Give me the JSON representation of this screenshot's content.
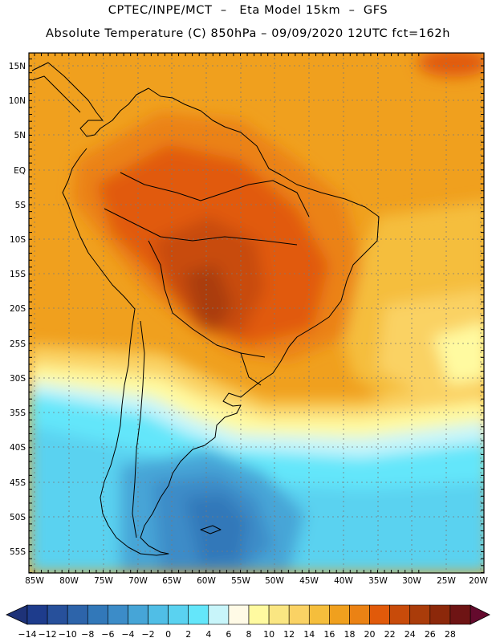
{
  "header": {
    "line1": "CPTEC/INPE/MCT  –   Eta Model 15km  –  GFS",
    "line2": "Absolute Temperature (C) 850hPa – 09/09/2020 12UTC fct=162h"
  },
  "map": {
    "region": "South America",
    "lat_labels": [
      "15N",
      "10N",
      "5N",
      "EQ",
      "5S",
      "10S",
      "15S",
      "20S",
      "25S",
      "30S",
      "35S",
      "40S",
      "45S",
      "50S",
      "55S"
    ],
    "lon_labels": [
      "85W",
      "80W",
      "75W",
      "70W",
      "65W",
      "60W",
      "55W",
      "50W",
      "45W",
      "40W",
      "35W",
      "30W",
      "25W",
      "20W"
    ]
  },
  "colorbar": {
    "labels": [
      "-14",
      "-12",
      "-10",
      "-8",
      "-6",
      "-4",
      "-2",
      "0",
      "2",
      "4",
      "6",
      "8",
      "10",
      "12",
      "14",
      "16",
      "18",
      "20",
      "22",
      "24",
      "26",
      "28"
    ],
    "colors": [
      "#1e3c8c",
      "#27509b",
      "#2d64aa",
      "#3278b9",
      "#3c8cc8",
      "#46a5d7",
      "#50bee6",
      "#5ad2f0",
      "#64e6fa",
      "#c8f5fa",
      "#fffae6",
      "#fffaa0",
      "#fae682",
      "#fad264",
      "#f5be3c",
      "#f0a01e",
      "#eb8214",
      "#e15a0a",
      "#c84b0a",
      "#aa3c0a",
      "#8c280a",
      "#6e1414"
    ],
    "left_arrow_color": "#1e3278",
    "right_arrow_color": "#640a2d"
  }
}
